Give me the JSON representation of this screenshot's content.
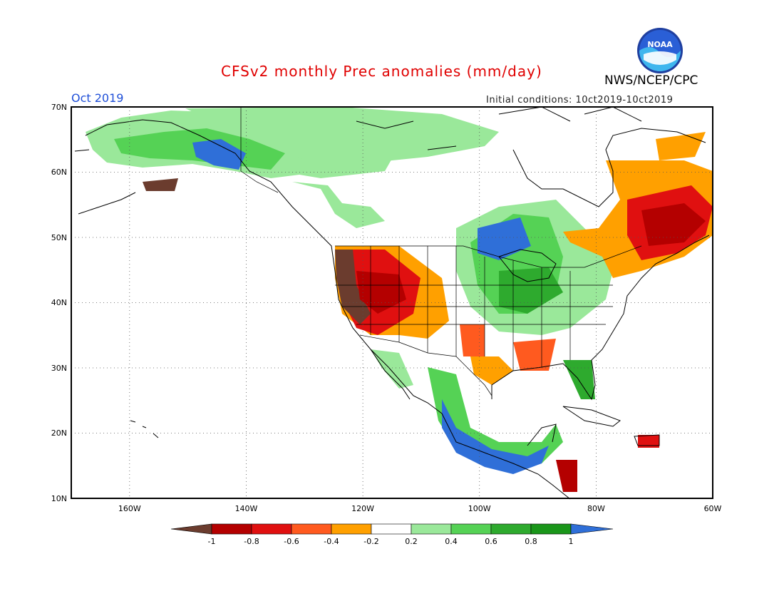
{
  "title": "CFSv2 monthly Prec anomalies (mm/day)",
  "agency": "NWS/NCEP/CPC",
  "logo_text": "NOAA",
  "month_label": "Oct 2019",
  "initial_conditions": "Initial conditions: 10ct2019-10ct2019",
  "lat_labels": [
    "70N",
    "60N",
    "50N",
    "40N",
    "30N",
    "20N",
    "10N"
  ],
  "lon_labels": [
    "160W",
    "140W",
    "120W",
    "100W",
    "80W",
    "60W"
  ],
  "colorbar": {
    "tick_labels": [
      "-1",
      "-0.8",
      "-0.6",
      "-0.4",
      "-0.2",
      "0.2",
      "0.4",
      "0.6",
      "0.8",
      "1"
    ],
    "colors": {
      "below_-1": "#6b3c2e",
      "-1_-0.8": "#b40000",
      "-0.8_-0.6": "#e01010",
      "-0.6_-0.4": "#ff5a1f",
      "-0.4_-0.2": "#ffa000",
      "-0.2_0.2": "#ffffff",
      "0.2_0.4": "#9ae89a",
      "0.4_0.6": "#55d255",
      "0.6_0.8": "#2eaa2e",
      "0.8_1": "#1a961a",
      "above_1": "#2f6fd8"
    }
  },
  "map": {
    "lon_range": [
      -170,
      -60
    ],
    "lat_range": [
      10,
      70
    ],
    "grid": "dotted"
  }
}
